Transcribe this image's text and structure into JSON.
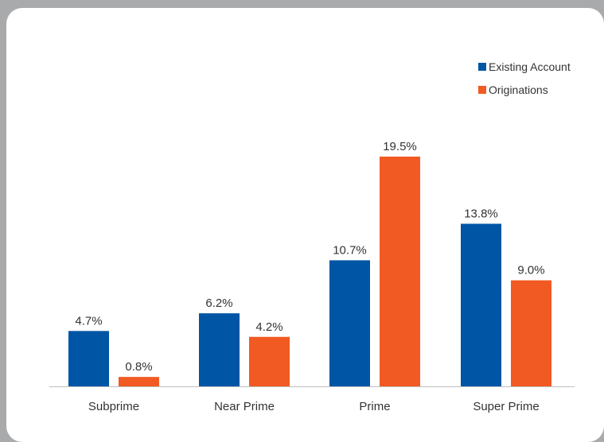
{
  "chart_data": {
    "type": "bar",
    "categories": [
      "Subprime",
      "Near Prime",
      "Prime",
      "Super Prime"
    ],
    "series": [
      {
        "name": "Existing Account",
        "values": [
          4.7,
          6.2,
          10.7,
          13.8
        ],
        "labels": [
          "4.7%",
          "6.2%",
          "10.7%",
          "13.8%"
        ],
        "color": "#0055a5"
      },
      {
        "name": "Originations",
        "values": [
          0.8,
          4.2,
          19.5,
          9.0
        ],
        "labels": [
          "0.8%",
          "4.2%",
          "19.5%",
          "9.0%"
        ],
        "color": "#f15a22"
      }
    ],
    "title": "",
    "xlabel": "",
    "ylabel": "",
    "ylim": [
      0,
      19.5
    ],
    "grid": false,
    "legend": "top-right",
    "axis_color": "#bfbfbf"
  }
}
